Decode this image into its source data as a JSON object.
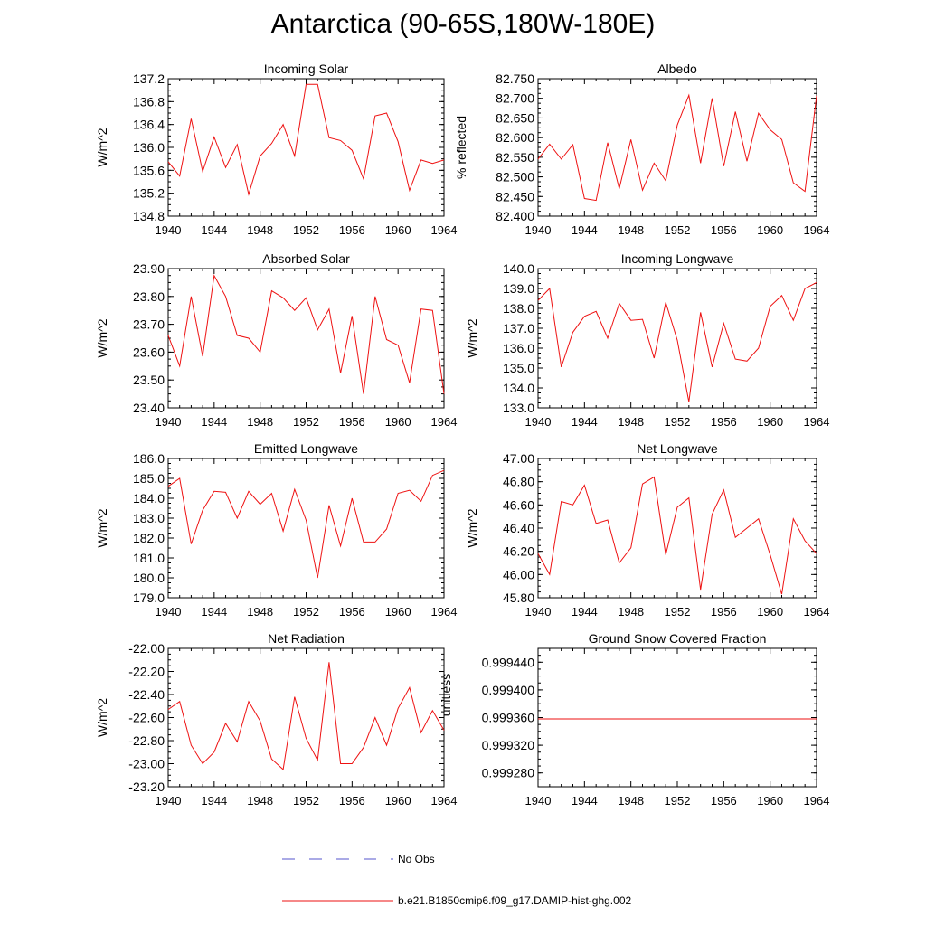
{
  "figure": {
    "title": "Antarctica (90-65S,180W-180E)"
  },
  "legend": [
    {
      "label": "No Obs",
      "color": "#5555cc",
      "style": "dashed"
    },
    {
      "label": "b.e21.B1850cmip6.f09_g17.DAMIP-hist-ghg.002",
      "color": "#ee1111",
      "style": "solid"
    }
  ],
  "chart_data": [
    {
      "type": "line",
      "title": "Incoming Solar",
      "ylabel": "W/m^2",
      "xlim": [
        1940,
        1964
      ],
      "ylim": [
        134.8,
        137.2
      ],
      "xticks": [
        "1940",
        "1944",
        "1948",
        "1952",
        "1956",
        "1960",
        "1964"
      ],
      "yticks": [
        "134.8",
        "135.2",
        "135.6",
        "136.0",
        "136.4",
        "136.8",
        "137.2"
      ],
      "color": "#ee1111",
      "x": [
        1940,
        1941,
        1942,
        1943,
        1944,
        1945,
        1946,
        1947,
        1948,
        1949,
        1950,
        1951,
        1952,
        1953,
        1954,
        1955,
        1956,
        1957,
        1958,
        1959,
        1960,
        1961,
        1962,
        1963,
        1964
      ],
      "y": [
        135.75,
        135.5,
        136.5,
        135.58,
        136.18,
        135.65,
        136.05,
        135.18,
        135.85,
        136.07,
        136.4,
        135.85,
        137.1,
        137.1,
        136.17,
        136.12,
        135.95,
        135.45,
        136.55,
        136.6,
        136.1,
        135.25,
        135.78,
        135.72,
        135.78
      ]
    },
    {
      "type": "line",
      "title": "Albedo",
      "ylabel": "% reflected",
      "xlim": [
        1940,
        1964
      ],
      "ylim": [
        82.4,
        82.75
      ],
      "xticks": [
        "1940",
        "1944",
        "1948",
        "1952",
        "1956",
        "1960",
        "1964"
      ],
      "yticks": [
        "82.400",
        "82.450",
        "82.500",
        "82.550",
        "82.600",
        "82.650",
        "82.700",
        "82.750"
      ],
      "color": "#ee1111",
      "x": [
        1940,
        1941,
        1942,
        1943,
        1944,
        1945,
        1946,
        1947,
        1948,
        1949,
        1950,
        1951,
        1952,
        1953,
        1954,
        1955,
        1956,
        1957,
        1958,
        1959,
        1960,
        1961,
        1962,
        1963,
        1964
      ],
      "y": [
        82.545,
        82.583,
        82.545,
        82.582,
        82.445,
        82.44,
        82.587,
        82.47,
        82.595,
        82.466,
        82.535,
        82.49,
        82.632,
        82.708,
        82.535,
        82.7,
        82.527,
        82.666,
        82.54,
        82.662,
        82.62,
        82.595,
        82.485,
        82.463,
        82.707
      ]
    },
    {
      "type": "line",
      "title": "Absorbed Solar",
      "ylabel": "W/m^2",
      "xlim": [
        1940,
        1964
      ],
      "ylim": [
        23.4,
        23.9
      ],
      "xticks": [
        "1940",
        "1944",
        "1948",
        "1952",
        "1956",
        "1960",
        "1964"
      ],
      "yticks": [
        "23.40",
        "23.50",
        "23.60",
        "23.70",
        "23.80",
        "23.90"
      ],
      "color": "#ee1111",
      "x": [
        1940,
        1941,
        1942,
        1943,
        1944,
        1945,
        1946,
        1947,
        1948,
        1949,
        1950,
        1951,
        1952,
        1953,
        1954,
        1955,
        1956,
        1957,
        1958,
        1959,
        1960,
        1961,
        1962,
        1963,
        1964
      ],
      "y": [
        23.66,
        23.55,
        23.8,
        23.585,
        23.875,
        23.8,
        23.66,
        23.65,
        23.6,
        23.82,
        23.795,
        23.75,
        23.795,
        23.68,
        23.755,
        23.525,
        23.73,
        23.45,
        23.8,
        23.645,
        23.625,
        23.49,
        23.755,
        23.75,
        23.45
      ]
    },
    {
      "type": "line",
      "title": "Incoming Longwave",
      "ylabel": "W/m^2",
      "xlim": [
        1940,
        1964
      ],
      "ylim": [
        133.0,
        140.0
      ],
      "xticks": [
        "1940",
        "1944",
        "1948",
        "1952",
        "1956",
        "1960",
        "1964"
      ],
      "yticks": [
        "133.0",
        "134.0",
        "135.0",
        "136.0",
        "137.0",
        "138.0",
        "139.0",
        "140.0"
      ],
      "color": "#ee1111",
      "x": [
        1940,
        1941,
        1942,
        1943,
        1944,
        1945,
        1946,
        1947,
        1948,
        1949,
        1950,
        1951,
        1952,
        1953,
        1954,
        1955,
        1956,
        1957,
        1958,
        1959,
        1960,
        1961,
        1962,
        1963,
        1964
      ],
      "y": [
        138.4,
        139.0,
        135.05,
        136.8,
        137.6,
        137.85,
        136.5,
        138.25,
        137.4,
        137.45,
        135.5,
        138.3,
        136.4,
        133.3,
        137.8,
        135.05,
        137.25,
        135.45,
        135.35,
        136.0,
        138.1,
        138.65,
        137.4,
        139.0,
        139.3
      ]
    },
    {
      "type": "line",
      "title": "Emitted Longwave",
      "ylabel": "W/m^2",
      "xlim": [
        1940,
        1964
      ],
      "ylim": [
        179.0,
        186.0
      ],
      "xticks": [
        "1940",
        "1944",
        "1948",
        "1952",
        "1956",
        "1960",
        "1964"
      ],
      "yticks": [
        "179.0",
        "180.0",
        "181.0",
        "182.0",
        "183.0",
        "184.0",
        "185.0",
        "186.0"
      ],
      "color": "#ee1111",
      "x": [
        1940,
        1941,
        1942,
        1943,
        1944,
        1945,
        1946,
        1947,
        1948,
        1949,
        1950,
        1951,
        1952,
        1953,
        1954,
        1955,
        1956,
        1957,
        1958,
        1959,
        1960,
        1961,
        1962,
        1963,
        1964
      ],
      "y": [
        184.6,
        185.0,
        181.7,
        183.4,
        184.35,
        184.3,
        183.0,
        184.35,
        183.7,
        184.25,
        182.35,
        184.45,
        182.9,
        180.0,
        183.65,
        181.6,
        184.0,
        181.8,
        181.8,
        182.45,
        184.25,
        184.4,
        183.85,
        185.15,
        185.4
      ]
    },
    {
      "type": "line",
      "title": "Net Longwave",
      "ylabel": "W/m^2",
      "xlim": [
        1940,
        1964
      ],
      "ylim": [
        45.8,
        47.0
      ],
      "xticks": [
        "1940",
        "1944",
        "1948",
        "1952",
        "1956",
        "1960",
        "1964"
      ],
      "yticks": [
        "45.80",
        "46.00",
        "46.20",
        "46.40",
        "46.60",
        "46.80",
        "47.00"
      ],
      "color": "#ee1111",
      "x": [
        1940,
        1941,
        1942,
        1943,
        1944,
        1945,
        1946,
        1947,
        1948,
        1949,
        1950,
        1951,
        1952,
        1953,
        1954,
        1955,
        1956,
        1957,
        1958,
        1959,
        1960,
        1961,
        1962,
        1963,
        1964
      ],
      "y": [
        46.18,
        46.0,
        46.63,
        46.6,
        46.77,
        46.44,
        46.47,
        46.1,
        46.23,
        46.78,
        46.84,
        46.17,
        46.58,
        46.66,
        45.87,
        46.52,
        46.73,
        46.32,
        46.4,
        46.48,
        46.17,
        45.83,
        46.48,
        46.29,
        46.18
      ]
    },
    {
      "type": "line",
      "title": "Net Radiation",
      "ylabel": "W/m^2",
      "xlim": [
        1940,
        1964
      ],
      "ylim": [
        -23.2,
        -22.0
      ],
      "xticks": [
        "1940",
        "1944",
        "1948",
        "1952",
        "1956",
        "1960",
        "1964"
      ],
      "yticks": [
        "-23.20",
        "-23.00",
        "-22.80",
        "-22.60",
        "-22.40",
        "-22.20",
        "-22.00"
      ],
      "color": "#ee1111",
      "x": [
        1940,
        1941,
        1942,
        1943,
        1944,
        1945,
        1946,
        1947,
        1948,
        1949,
        1950,
        1951,
        1952,
        1953,
        1954,
        1955,
        1956,
        1957,
        1958,
        1959,
        1960,
        1961,
        1962,
        1963,
        1964
      ],
      "y": [
        -22.53,
        -22.46,
        -22.84,
        -23.0,
        -22.9,
        -22.65,
        -22.81,
        -22.46,
        -22.63,
        -22.96,
        -23.05,
        -22.42,
        -22.78,
        -22.97,
        -22.12,
        -23.0,
        -23.0,
        -22.86,
        -22.6,
        -22.84,
        -22.52,
        -22.34,
        -22.73,
        -22.54,
        -22.71
      ]
    },
    {
      "type": "line",
      "title": "Ground Snow Covered Fraction",
      "ylabel": "unitless",
      "xlim": [
        1940,
        1964
      ],
      "ylim": [
        0.99926,
        0.99946
      ],
      "xticks": [
        "1940",
        "1944",
        "1948",
        "1952",
        "1956",
        "1960",
        "1964"
      ],
      "yticks": [
        "0.999280",
        "0.999320",
        "0.999360",
        "0.999400",
        "0.999440"
      ],
      "color": "#ee1111",
      "x": [
        1940,
        1941,
        1942,
        1943,
        1944,
        1945,
        1946,
        1947,
        1948,
        1949,
        1950,
        1951,
        1952,
        1953,
        1954,
        1955,
        1956,
        1957,
        1958,
        1959,
        1960,
        1961,
        1962,
        1963,
        1964
      ],
      "y": [
        0.999358,
        0.999358,
        0.999358,
        0.999358,
        0.999358,
        0.999358,
        0.999358,
        0.999358,
        0.999358,
        0.999358,
        0.999358,
        0.999358,
        0.999358,
        0.999358,
        0.999358,
        0.999358,
        0.999358,
        0.999358,
        0.999358,
        0.999358,
        0.999358,
        0.999358,
        0.999358,
        0.999358,
        0.999358
      ]
    }
  ]
}
